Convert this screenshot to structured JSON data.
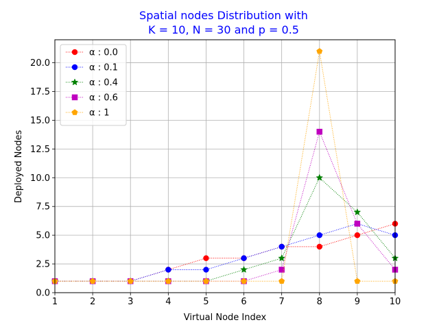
{
  "chart_data": {
    "type": "line",
    "title_lines": [
      "Spatial nodes Distribution with",
      "K = 10, N = 30  and p = 0.5"
    ],
    "xlabel": "Virtual Node Index",
    "ylabel": "Deployed Nodes",
    "x": [
      1,
      2,
      3,
      4,
      5,
      6,
      7,
      8,
      9,
      10
    ],
    "xlim": [
      1,
      10
    ],
    "ylim": [
      0,
      22
    ],
    "xticks": [
      "1",
      "2",
      "3",
      "4",
      "5",
      "6",
      "7",
      "8",
      "9",
      "10"
    ],
    "yticks": [
      {
        "value": 0,
        "label": "0.0"
      },
      {
        "value": 2.5,
        "label": "2.5"
      },
      {
        "value": 5,
        "label": "5.0"
      },
      {
        "value": 7.5,
        "label": "7.5"
      },
      {
        "value": 10,
        "label": "10.0"
      },
      {
        "value": 12.5,
        "label": "12.5"
      },
      {
        "value": 15,
        "label": "15.0"
      },
      {
        "value": 17.5,
        "label": "17.5"
      },
      {
        "value": 20,
        "label": "20.0"
      }
    ],
    "grid": true,
    "legend_position": "top-left",
    "title_color": "#0000ff",
    "series": [
      {
        "name": "α : 0.0",
        "color": "#ff0000",
        "marker": "circle",
        "values": [
          1,
          1,
          1,
          2,
          3,
          3,
          4,
          4,
          5,
          6
        ]
      },
      {
        "name": "α : 0.1",
        "color": "#0000ff",
        "marker": "circle",
        "values": [
          1,
          1,
          1,
          2,
          2,
          3,
          4,
          5,
          6,
          5
        ]
      },
      {
        "name": "α : 0.4",
        "color": "#008000",
        "marker": "star",
        "values": [
          1,
          1,
          1,
          1,
          1,
          2,
          3,
          10,
          7,
          3
        ]
      },
      {
        "name": "α : 0.6",
        "color": "#bf00bf",
        "marker": "square",
        "values": [
          1,
          1,
          1,
          1,
          1,
          1,
          2,
          14,
          6,
          2
        ]
      },
      {
        "name": "α : 1",
        "color": "#ffa500",
        "marker": "pentagon",
        "values": [
          1,
          1,
          1,
          1,
          1,
          1,
          1,
          21,
          1,
          1
        ]
      }
    ]
  }
}
